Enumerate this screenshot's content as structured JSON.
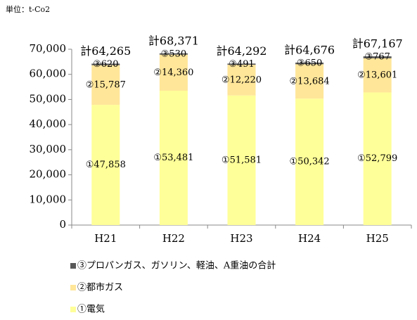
{
  "chart_data": {
    "type": "stacked-bar",
    "unit_label": "単位：t-Co2",
    "categories": [
      "H21",
      "H22",
      "H23",
      "H24",
      "H25"
    ],
    "series": [
      {
        "name": "①電気",
        "color": "#ffff99",
        "values": [
          47858,
          53481,
          51581,
          50342,
          52799
        ],
        "value_labels": [
          "①47,858",
          "①53,481",
          "①51,581",
          "①50,342",
          "①52,799"
        ]
      },
      {
        "name": "②都市ガス",
        "color": "#ffe699",
        "values": [
          15787,
          14360,
          12220,
          13684,
          13601
        ],
        "value_labels": [
          "②15,787",
          "②14,360",
          "②12,220",
          "②13,684",
          "②13,601"
        ]
      },
      {
        "name": "③プロパンガス、ガソリン、軽油、A重油の合計",
        "color": "#595959",
        "values": [
          620,
          530,
          491,
          650,
          767
        ],
        "value_labels": [
          "③620",
          "③530",
          "③491",
          "③650",
          "③767"
        ]
      }
    ],
    "total_labels": [
      "計64,265",
      "計68,371",
      "計64,292",
      "計64,676",
      "計67,167"
    ],
    "ylim": [
      0,
      70000
    ],
    "yticks": [
      0,
      {
        "value": 10000,
        "label": "10,000"
      },
      {
        "value": 20000,
        "label": "20,000"
      },
      {
        "value": 30000,
        "label": "30,000"
      },
      {
        "value": 40000,
        "label": "40,000"
      },
      {
        "value": 50000,
        "label": "50,000"
      },
      {
        "value": 60000,
        "label": "60,000"
      },
      {
        "value": 70000,
        "label": "70,000"
      }
    ],
    "grid": false,
    "legend": "bottom"
  }
}
